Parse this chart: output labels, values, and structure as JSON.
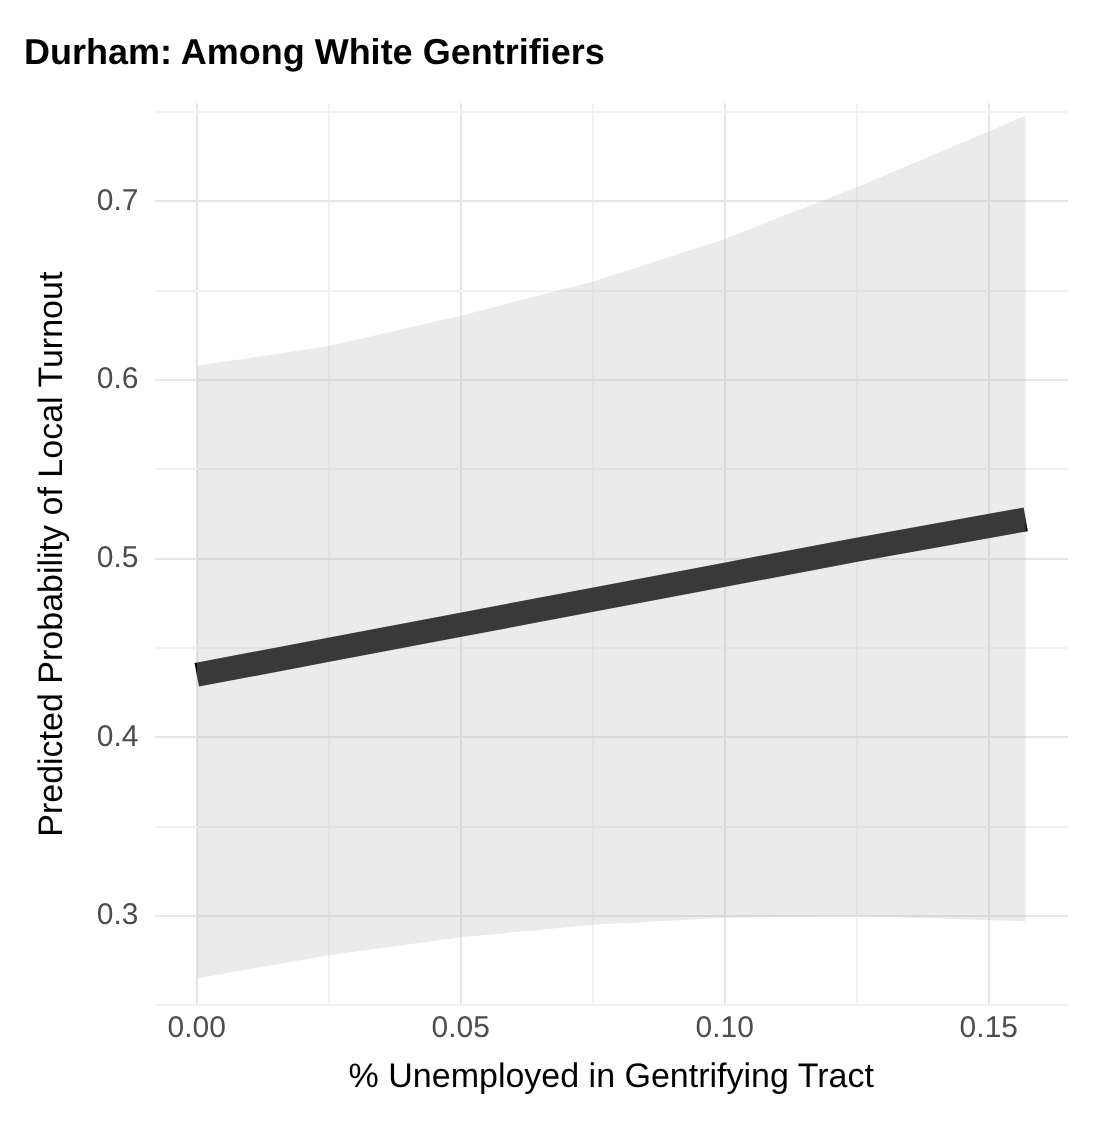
{
  "chart_data": {
    "type": "line",
    "title": "Durham: Among White Gentrifiers",
    "xlabel": "% Unemployed in Gentrifying Tract",
    "ylabel": "Predicted Probability of Local Turnout",
    "series": [
      {
        "color": "#000000",
        "x": [
          0,
          0.025,
          0.05,
          0.075,
          0.1,
          0.125,
          0.157
        ],
        "values": [
          0.435,
          0.449,
          0.463,
          0.477,
          0.491,
          0.505,
          0.522
        ],
        "lower": [
          0.265,
          0.278,
          0.288,
          0.295,
          0.299,
          0.3,
          0.297
        ],
        "upper": [
          0.608,
          0.619,
          0.636,
          0.655,
          0.679,
          0.708,
          0.748
        ]
      }
    ],
    "xlim": [
      -0.008,
      0.165
    ],
    "xticks": [
      {
        "value": 0,
        "label": "0.00"
      },
      {
        "value": 0.025,
        "label": null
      },
      {
        "value": 0.05,
        "label": "0.05"
      },
      {
        "value": 0.075,
        "label": null
      },
      {
        "value": 0.1,
        "label": "0.10"
      },
      {
        "value": 0.125,
        "label": null
      },
      {
        "value": 0.15,
        "label": "0.15"
      }
    ],
    "ylim": [
      0.25,
      0.755
    ],
    "yticks": [
      {
        "value": 0.25,
        "label": null
      },
      0.3,
      {
        "value": 0.35,
        "label": null
      },
      0.4,
      {
        "value": 0.45,
        "label": null
      },
      0.5,
      {
        "value": 0.55,
        "label": null
      },
      0.6,
      {
        "value": 0.65,
        "label": null
      },
      0.7,
      {
        "value": 0.75,
        "label": null
      }
    ],
    "grid": true,
    "legend": false,
    "marker": "none",
    "line_style": "solid"
  }
}
